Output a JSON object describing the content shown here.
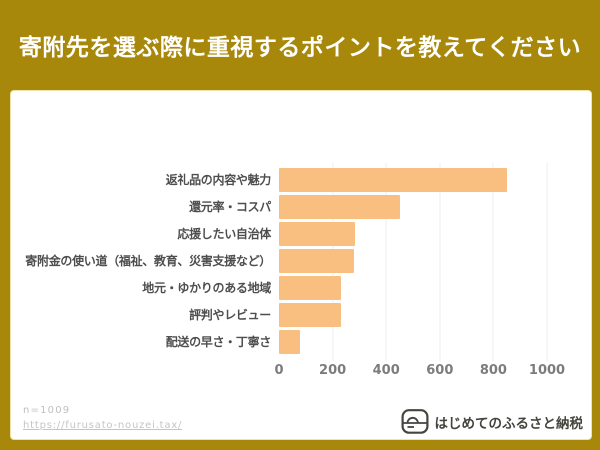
{
  "header": {
    "title": "寄附先を選ぶ際に重視するポイントを教えてください"
  },
  "chart_data": {
    "type": "bar",
    "orientation": "horizontal",
    "title": "寄附先を選ぶ際に重視するポイントを教えてください",
    "categories": [
      "返礼品の内容や魅力",
      "還元率・コスパ",
      "応援したい自治体",
      "寄附金の使い道（福祉、教育、災害支援など）",
      "地元・ゆかりのある地域",
      "評判やレビュー",
      "配送の早さ・丁寧さ"
    ],
    "values": [
      850,
      450,
      285,
      280,
      230,
      230,
      80
    ],
    "xlabel": "",
    "ylabel": "",
    "xlim": [
      0,
      1000
    ],
    "xticks": [
      0,
      200,
      400,
      600,
      800,
      1000
    ],
    "grid": true,
    "legend": false,
    "bar_color": "#F8BF80"
  },
  "footer": {
    "sample_size": "n=1009",
    "source_url": "https://furusato-nouzei.tax/",
    "brand": "はじめてのふるさと納税"
  },
  "colors": {
    "background_gold": "#A8880B",
    "card_white": "#FFFFFF",
    "bar_orange": "#F8BF80",
    "label_gray": "#4E4E4E",
    "tick_gray": "#7C7C7C",
    "meta_gray": "#BFBFBF",
    "brand_dark": "#45453E",
    "title_white": "#FFFFFF"
  }
}
